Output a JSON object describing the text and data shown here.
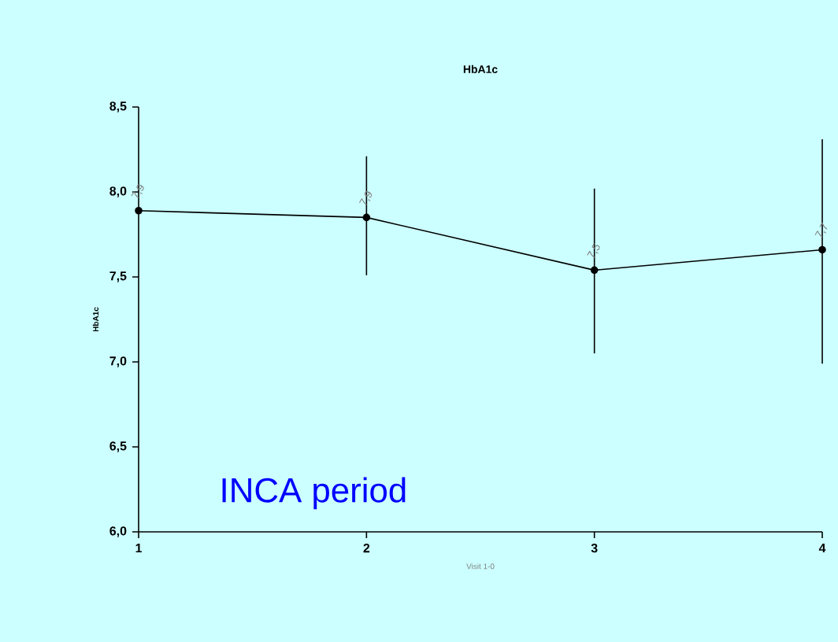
{
  "chart_data": {
    "type": "line",
    "title": "HbA1c",
    "xlabel": "Visit 1-0",
    "ylabel": "HbA1c",
    "x": [
      1,
      2,
      3,
      4
    ],
    "series": [
      {
        "color": "#000000",
        "values": [
          7.89,
          7.85,
          7.54,
          7.66
        ],
        "errors": [
          null,
          [
            7.51,
            8.21
          ],
          [
            7.05,
            8.02
          ],
          [
            6.99,
            8.31
          ]
        ],
        "value_labels": [
          "7,9",
          "7,9",
          "7,5",
          "7,7"
        ]
      }
    ],
    "xlim": [
      1,
      4
    ],
    "xticks": [
      1,
      2,
      3,
      4
    ],
    "ylim": [
      6,
      8.5
    ],
    "yticks": [
      {
        "value": 6,
        "label": "6,0"
      },
      {
        "value": 6.5,
        "label": "6,5"
      },
      {
        "value": 7,
        "label": "7,0"
      },
      {
        "value": 7.5,
        "label": "7,5"
      },
      {
        "value": 8,
        "label": "8,0"
      },
      {
        "value": 8.5,
        "label": "8,5"
      }
    ],
    "annotations": [
      "INCA period"
    ],
    "marker": "circle",
    "line_style": "solid",
    "grid": false
  }
}
